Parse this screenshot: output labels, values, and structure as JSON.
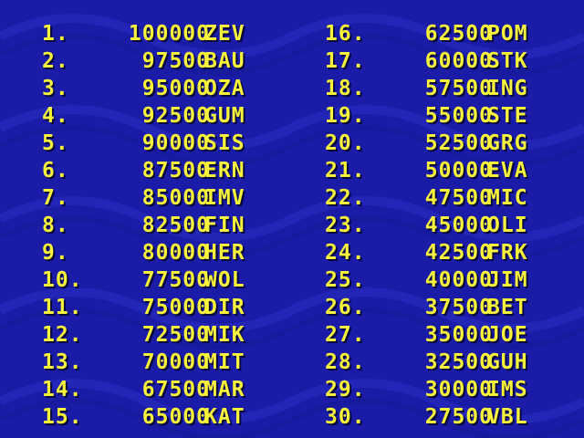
{
  "screen_title": "",
  "colors": {
    "background": "#1a1ca8",
    "text": "#f7f23a",
    "shadow": "#05063a",
    "pattern": "#2326b8"
  },
  "high_scores": {
    "left": [
      {
        "rank": "1.",
        "score": "100000",
        "initials": "ZEV"
      },
      {
        "rank": "2.",
        "score": "97500",
        "initials": "BAU"
      },
      {
        "rank": "3.",
        "score": "95000",
        "initials": "OZA"
      },
      {
        "rank": "4.",
        "score": "92500",
        "initials": "GUM"
      },
      {
        "rank": "5.",
        "score": "90000",
        "initials": "SIS"
      },
      {
        "rank": "6.",
        "score": "87500",
        "initials": "ERN"
      },
      {
        "rank": "7.",
        "score": "85000",
        "initials": "IMV"
      },
      {
        "rank": "8.",
        "score": "82500",
        "initials": "FIN"
      },
      {
        "rank": "9.",
        "score": "80000",
        "initials": "HER"
      },
      {
        "rank": "10.",
        "score": "77500",
        "initials": "WOL"
      },
      {
        "rank": "11.",
        "score": "75000",
        "initials": "DIR"
      },
      {
        "rank": "12.",
        "score": "72500",
        "initials": "MIK"
      },
      {
        "rank": "13.",
        "score": "70000",
        "initials": "MIT"
      },
      {
        "rank": "14.",
        "score": "67500",
        "initials": "MAR"
      },
      {
        "rank": "15.",
        "score": "65000",
        "initials": "KAT"
      }
    ],
    "right": [
      {
        "rank": "16.",
        "score": "62500",
        "initials": "POM"
      },
      {
        "rank": "17.",
        "score": "60000",
        "initials": "STK"
      },
      {
        "rank": "18.",
        "score": "57500",
        "initials": "ING"
      },
      {
        "rank": "19.",
        "score": "55000",
        "initials": "STE"
      },
      {
        "rank": "20.",
        "score": "52500",
        "initials": "GRG"
      },
      {
        "rank": "21.",
        "score": "50000",
        "initials": "EVA"
      },
      {
        "rank": "22.",
        "score": "47500",
        "initials": "MIC"
      },
      {
        "rank": "23.",
        "score": "45000",
        "initials": "OLI"
      },
      {
        "rank": "24.",
        "score": "42500",
        "initials": "FRK"
      },
      {
        "rank": "25.",
        "score": "40000",
        "initials": "JIM"
      },
      {
        "rank": "26.",
        "score": "37500",
        "initials": "BET"
      },
      {
        "rank": "27.",
        "score": "35000",
        "initials": "JOE"
      },
      {
        "rank": "28.",
        "score": "32500",
        "initials": "GUH"
      },
      {
        "rank": "29.",
        "score": "30000",
        "initials": "IMS"
      },
      {
        "rank": "30.",
        "score": "27500",
        "initials": "VBL"
      }
    ]
  }
}
